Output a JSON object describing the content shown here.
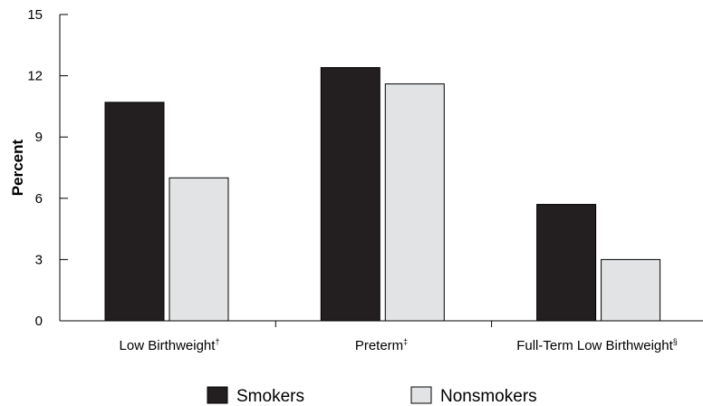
{
  "chart_data": {
    "type": "bar",
    "ylabel": "Percent",
    "xlabel": "",
    "ylim": [
      0,
      15
    ],
    "yticks": [
      0,
      3,
      6,
      9,
      12,
      15
    ],
    "grid": false,
    "legend_position": "bottom",
    "categories": [
      {
        "label": "Low Birthweight",
        "mark": "†"
      },
      {
        "label": "Preterm",
        "mark": "‡"
      },
      {
        "label": "Full-Term Low Birthweight",
        "mark": "§"
      }
    ],
    "series": [
      {
        "name": "Smokers",
        "color": "#231f20",
        "values": [
          10.7,
          12.4,
          5.7
        ]
      },
      {
        "name": "Nonsmokers",
        "color": "#e2e3e4",
        "values": [
          7.0,
          11.6,
          3.0
        ]
      }
    ]
  }
}
